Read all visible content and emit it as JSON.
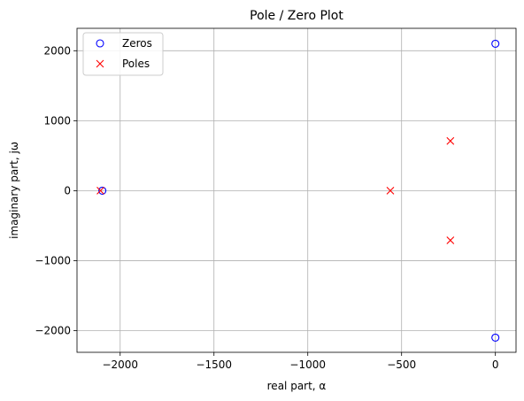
{
  "chart_data": {
    "type": "scatter",
    "title": "Pole / Zero Plot",
    "xlabel": "real part, α",
    "ylabel": "imaginary part, jω",
    "xlim": [
      -2230,
      110
    ],
    "ylim": [
      -2310,
      2320
    ],
    "xticks": [
      -2000,
      -1500,
      -1000,
      -500,
      0
    ],
    "yticks": [
      -2000,
      -1000,
      0,
      1000,
      2000
    ],
    "xtick_labels": [
      "−2000",
      "−1500",
      "−1000",
      "−500",
      "0"
    ],
    "ytick_labels": [
      "−2000",
      "−1000",
      "0",
      "1000",
      "2000"
    ],
    "grid": true,
    "legend_position": "top-left",
    "series": [
      {
        "name": "Zeros",
        "marker": "circle",
        "color": "#0000ff",
        "points": [
          {
            "x": 0,
            "y": 2100
          },
          {
            "x": 0,
            "y": -2100
          },
          {
            "x": -2095,
            "y": 0
          }
        ]
      },
      {
        "name": "Poles",
        "marker": "x",
        "color": "#ff0000",
        "points": [
          {
            "x": -2105,
            "y": 0
          },
          {
            "x": -560,
            "y": 0
          },
          {
            "x": -240,
            "y": 710
          },
          {
            "x": -240,
            "y": -710
          }
        ]
      }
    ]
  }
}
